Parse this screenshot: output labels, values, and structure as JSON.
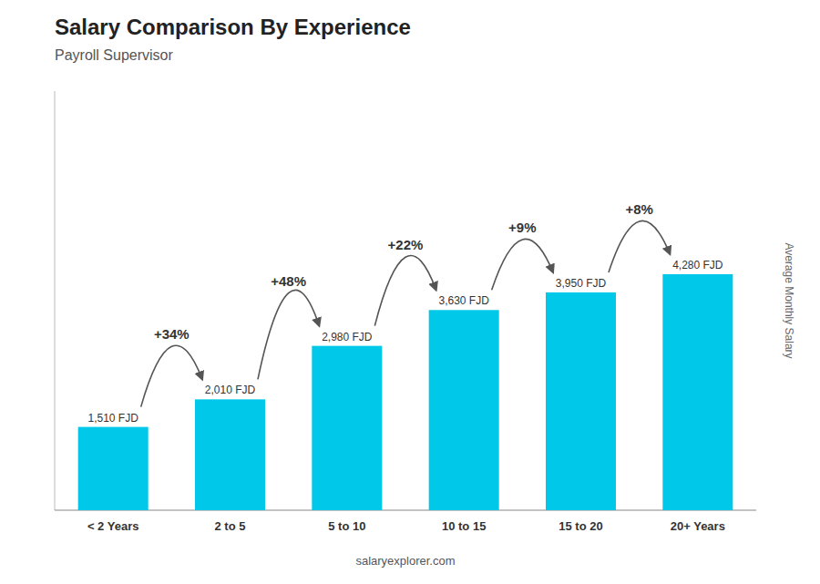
{
  "chart_data": {
    "type": "bar",
    "title": "Salary Comparison By Experience",
    "subtitle": "Payroll Supervisor",
    "ylabel": "Average Monthly Salary",
    "categories": [
      "< 2 Years",
      "2 to 5",
      "5 to 10",
      "10 to 15",
      "15 to 20",
      "20+ Years"
    ],
    "values": [
      1510,
      2010,
      2980,
      3630,
      3950,
      4280
    ],
    "value_labels": [
      "1,510 FJD",
      "2,010 FJD",
      "2,980 FJD",
      "3,630 FJD",
      "3,950 FJD",
      "4,280 FJD"
    ],
    "data_labels": true,
    "annotations": [
      "+34%",
      "+48%",
      "+22%",
      "+9%",
      "+8%"
    ],
    "footer": "salaryexplorer.com",
    "color": "#00c8e8",
    "ylim": [
      0,
      7600
    ],
    "tick_labels": "x",
    "grid": false
  }
}
